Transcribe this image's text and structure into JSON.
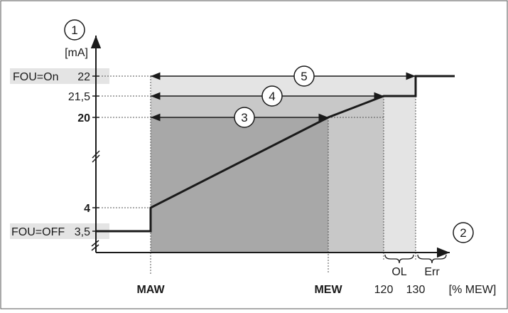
{
  "axes": {
    "y_axis_marker": "1",
    "y_unit": "[mA]",
    "x_axis_marker": "2",
    "x_unit": "[% MEW]"
  },
  "y_ticks": {
    "fou_on": "FOU=On",
    "v22": "22",
    "v21_5": "21,5",
    "v20": "20",
    "v4": "4",
    "fou_off": "FOU=OFF",
    "v3_5": "3,5"
  },
  "x_ticks": {
    "maw": "MAW",
    "mew": "MEW",
    "v120": "120",
    "v130": "130"
  },
  "ranges": {
    "range3": "3",
    "range4": "4",
    "range5": "5",
    "ol": "OL",
    "err": "Err"
  },
  "colors": {
    "region_dark": "#a8a8a8",
    "region_mid": "#c8c8c8",
    "region_light": "#e4e4e4",
    "label_bg": "#e4e4e4",
    "line": "#1a1a1a"
  }
}
